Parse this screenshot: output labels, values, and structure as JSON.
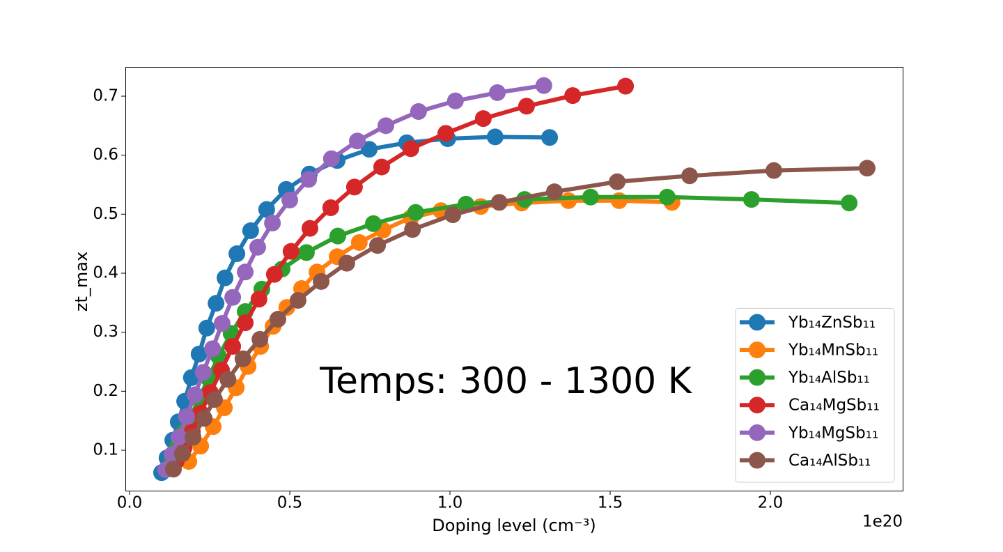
{
  "chart_data": {
    "type": "line",
    "xlabel": "Doping level (cm⁻³)",
    "ylabel": "zt_max",
    "x_offset_label": "1e20",
    "annotation": "Temps: 300 - 1300 K",
    "xlim": [
      -0.013,
      2.413
    ],
    "ylim": [
      0.0315,
      0.7496
    ],
    "xticks": [
      {
        "value": 0,
        "label": "0.0"
      },
      0.5,
      {
        "value": 1,
        "label": "1.0"
      },
      1.5,
      {
        "value": 2,
        "label": "2.0"
      }
    ],
    "yticks": [
      0.1,
      0.2,
      0.3,
      0.4,
      0.5,
      0.6,
      0.7
    ],
    "legend": "lower right",
    "series": [
      {
        "name": "Yb₁₄ZnSb₁₁",
        "color": "#1f77b4",
        "x": [
          0.1,
          0.117,
          0.135,
          0.152,
          0.172,
          0.193,
          0.217,
          0.241,
          0.27,
          0.298,
          0.335,
          0.378,
          0.428,
          0.489,
          0.561,
          0.648,
          0.748,
          0.865,
          0.993,
          1.141,
          1.311
        ],
        "values": [
          0.062,
          0.087,
          0.117,
          0.148,
          0.183,
          0.223,
          0.263,
          0.307,
          0.349,
          0.392,
          0.433,
          0.472,
          0.508,
          0.542,
          0.568,
          0.591,
          0.61,
          0.621,
          0.628,
          0.631,
          0.63
        ]
      },
      {
        "name": "Yb₁₄MnSb₁₁",
        "color": "#ff7f0e",
        "x": [
          0.185,
          0.222,
          0.261,
          0.296,
          0.333,
          0.37,
          0.409,
          0.448,
          0.491,
          0.537,
          0.585,
          0.648,
          0.717,
          0.791,
          0.878,
          0.972,
          1.096,
          1.224,
          1.37,
          1.528,
          1.693
        ],
        "values": [
          0.081,
          0.107,
          0.14,
          0.172,
          0.206,
          0.242,
          0.276,
          0.31,
          0.342,
          0.374,
          0.402,
          0.428,
          0.452,
          0.473,
          0.494,
          0.506,
          0.513,
          0.519,
          0.523,
          0.523,
          0.52
        ]
      },
      {
        "name": "Yb₁₄AlSb₁₁",
        "color": "#2ca02c",
        "x": [
          0.133,
          0.15,
          0.17,
          0.191,
          0.217,
          0.246,
          0.278,
          0.317,
          0.361,
          0.413,
          0.476,
          0.552,
          0.65,
          0.761,
          0.893,
          1.05,
          1.233,
          1.439,
          1.678,
          1.941,
          2.246
        ],
        "values": [
          0.087,
          0.107,
          0.131,
          0.157,
          0.187,
          0.222,
          0.259,
          0.298,
          0.335,
          0.373,
          0.407,
          0.435,
          0.463,
          0.484,
          0.503,
          0.517,
          0.525,
          0.529,
          0.529,
          0.525,
          0.519
        ]
      },
      {
        "name": "Ca₁₄MgSb₁₁",
        "color": "#d62728",
        "x": [
          0.146,
          0.17,
          0.196,
          0.222,
          0.252,
          0.287,
          0.322,
          0.361,
          0.404,
          0.452,
          0.504,
          0.563,
          0.628,
          0.702,
          0.787,
          0.878,
          0.987,
          1.104,
          1.239,
          1.383,
          1.548
        ],
        "values": [
          0.082,
          0.104,
          0.131,
          0.163,
          0.198,
          0.236,
          0.276,
          0.316,
          0.356,
          0.398,
          0.437,
          0.476,
          0.511,
          0.546,
          0.58,
          0.611,
          0.637,
          0.662,
          0.683,
          0.701,
          0.717
        ]
      },
      {
        "name": "Yb₁₄MgSb₁₁",
        "color": "#9467bd",
        "x": [
          0.113,
          0.133,
          0.154,
          0.178,
          0.204,
          0.23,
          0.259,
          0.289,
          0.322,
          0.361,
          0.4,
          0.446,
          0.5,
          0.559,
          0.63,
          0.711,
          0.8,
          0.902,
          1.017,
          1.148,
          1.293
        ],
        "values": [
          0.067,
          0.093,
          0.122,
          0.157,
          0.194,
          0.232,
          0.272,
          0.315,
          0.359,
          0.402,
          0.444,
          0.485,
          0.524,
          0.559,
          0.594,
          0.624,
          0.65,
          0.674,
          0.692,
          0.706,
          0.718
        ]
      },
      {
        "name": "Ca₁₄AlSb₁₁",
        "color": "#8c564b",
        "x": [
          0.137,
          0.165,
          0.198,
          0.233,
          0.265,
          0.307,
          0.354,
          0.407,
          0.463,
          0.526,
          0.598,
          0.678,
          0.774,
          0.883,
          1.009,
          1.154,
          1.326,
          1.522,
          1.748,
          2.011,
          2.302
        ],
        "values": [
          0.068,
          0.094,
          0.122,
          0.154,
          0.186,
          0.22,
          0.255,
          0.288,
          0.322,
          0.354,
          0.386,
          0.417,
          0.447,
          0.474,
          0.499,
          0.52,
          0.538,
          0.555,
          0.565,
          0.574,
          0.578
        ]
      }
    ]
  }
}
